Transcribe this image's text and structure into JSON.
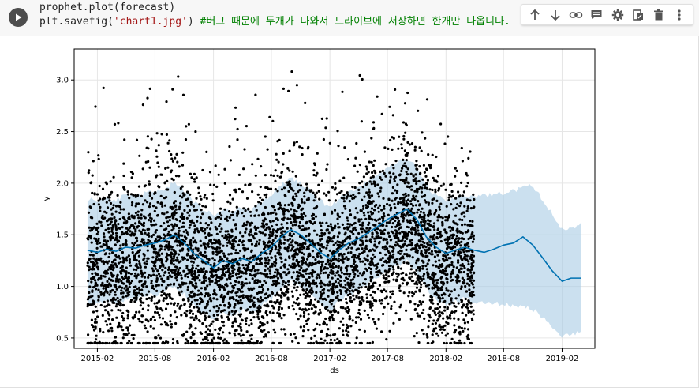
{
  "code": {
    "line1": "prophet.plot(forecast)",
    "line2_prefix": "plt.savefig(",
    "line2_string": "'chart1.jpg'",
    "line2_close": ")",
    "line2_comment": "#버그 때문에 두개가 나와서 드라이브에 저장하면 한개만 나옵니다."
  },
  "toolbar": {
    "icons": [
      "arrow-up-icon",
      "arrow-down-icon",
      "link-icon",
      "comment-icon",
      "gear-icon",
      "mirror-cell-icon",
      "delete-icon",
      "more-icon"
    ]
  },
  "colors": {
    "forecast_line": "#0072b2",
    "uncertainty": "#a8cce4",
    "points": "#000000",
    "grid": "#e6e6e6"
  },
  "chart_data": {
    "type": "scatter",
    "xlabel": "ds",
    "ylabel": "y",
    "x_ticks": [
      "2015-02",
      "2015-08",
      "2016-02",
      "2016-08",
      "2017-02",
      "2017-08",
      "2018-02",
      "2018-08",
      "2019-02"
    ],
    "y_ticks": [
      "0.5",
      "1.0",
      "1.5",
      "2.0",
      "2.5",
      "3.0"
    ],
    "xlim": [
      "2014-11-20",
      "2019-05-15"
    ],
    "ylim": [
      0.4,
      3.3
    ],
    "grid": true,
    "series": [
      {
        "kind": "observed_points",
        "x_range": [
          "2015-01-01",
          "2018-04-30"
        ],
        "y_range": [
          0.45,
          3.25
        ]
      },
      {
        "kind": "forecast_yhat",
        "x": [
          "2015-01-01",
          "2015-02-01",
          "2015-03-01",
          "2015-04-01",
          "2015-05-01",
          "2015-06-01",
          "2015-07-01",
          "2015-08-01",
          "2015-09-01",
          "2015-10-01",
          "2015-11-01",
          "2015-12-01",
          "2016-01-01",
          "2016-02-01",
          "2016-03-01",
          "2016-04-01",
          "2016-05-01",
          "2016-06-01",
          "2016-07-01",
          "2016-08-01",
          "2016-09-01",
          "2016-10-01",
          "2016-11-01",
          "2016-12-01",
          "2017-01-01",
          "2017-02-01",
          "2017-03-01",
          "2017-04-01",
          "2017-05-01",
          "2017-06-01",
          "2017-07-01",
          "2017-08-01",
          "2017-09-01",
          "2017-10-01",
          "2017-11-01",
          "2017-12-01",
          "2018-01-01",
          "2018-02-01",
          "2018-03-01",
          "2018-04-01",
          "2018-05-01",
          "2018-06-01",
          "2018-07-01",
          "2018-08-01",
          "2018-09-01",
          "2018-10-01",
          "2018-11-01",
          "2018-12-01",
          "2019-01-01",
          "2019-02-01",
          "2019-03-01",
          "2019-04-01"
        ],
        "y": [
          1.35,
          1.33,
          1.36,
          1.34,
          1.38,
          1.37,
          1.4,
          1.42,
          1.45,
          1.5,
          1.42,
          1.32,
          1.25,
          1.18,
          1.25,
          1.22,
          1.27,
          1.24,
          1.32,
          1.38,
          1.48,
          1.55,
          1.5,
          1.42,
          1.33,
          1.27,
          1.35,
          1.42,
          1.46,
          1.52,
          1.58,
          1.65,
          1.7,
          1.75,
          1.65,
          1.48,
          1.38,
          1.32,
          1.35,
          1.38,
          1.35,
          1.33,
          1.36,
          1.4,
          1.42,
          1.48,
          1.4,
          1.28,
          1.15,
          1.05,
          1.08,
          1.08
        ]
      },
      {
        "kind": "uncertainty_band",
        "x": [
          "2018-04-30",
          "2018-08-01",
          "2018-11-01",
          "2019-02-01",
          "2019-04-01"
        ],
        "lower": [
          0.85,
          0.83,
          0.78,
          0.52,
          0.55
        ],
        "upper": [
          1.87,
          1.9,
          1.98,
          1.55,
          1.6
        ]
      }
    ]
  }
}
